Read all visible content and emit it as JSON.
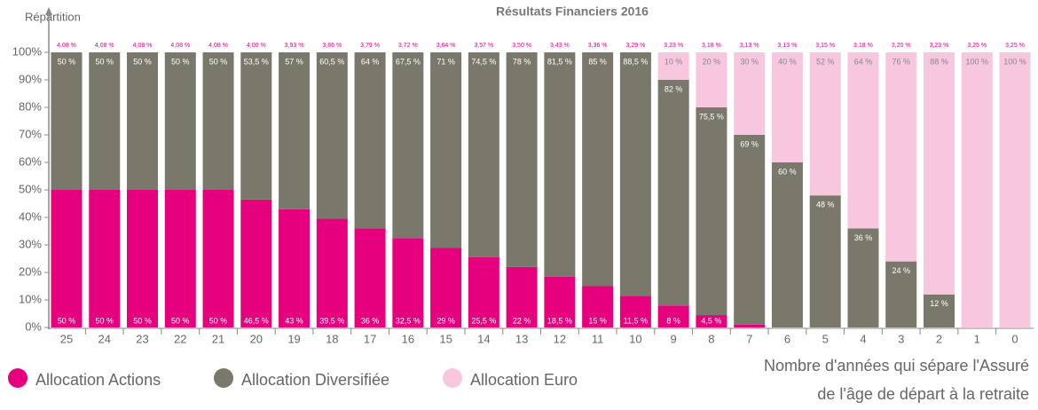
{
  "chart_data": {
    "type": "stacked_bar",
    "subtitle": "Résultats Financiers 2016",
    "y_label": "Répartition",
    "x_label": [
      "Nombre d'années qui sépare l'Assuré",
      "de l'âge de départ à la retraite"
    ],
    "categories": [
      "25",
      "24",
      "23",
      "22",
      "21",
      "20",
      "19",
      "18",
      "17",
      "16",
      "15",
      "14",
      "13",
      "12",
      "11",
      "10",
      "9",
      "8",
      "7",
      "6",
      "5",
      "4",
      "3",
      "2",
      "1",
      "0"
    ],
    "top_labels": [
      "4,08 %",
      "4,08 %",
      "4,08 %",
      "4,08 %",
      "4,08 %",
      "4,00 %",
      "3,93 %",
      "3,86 %",
      "3,79 %",
      "3,72 %",
      "3,64 %",
      "3,57 %",
      "3,50 %",
      "3,43 %",
      "3,36 %",
      "3,29 %",
      "3,23 %",
      "3,18 %",
      "3,13 %",
      "3,13 %",
      "3,15 %",
      "3,18 %",
      "3,20 %",
      "3,23 %",
      "3,25 %",
      "3,25 %"
    ],
    "series": [
      {
        "name": "Allocation Actions",
        "color": "#e6007e",
        "values": [
          50,
          50,
          50,
          50,
          50,
          46.5,
          43,
          39.5,
          36,
          32.5,
          29,
          25.5,
          22,
          18.5,
          15,
          11.5,
          8,
          4.5,
          1,
          0,
          0,
          0,
          0,
          0,
          0,
          0
        ],
        "value_labels": [
          "50 %",
          "50 %",
          "50 %",
          "50 %",
          "50 %",
          "46,5 %",
          "43 %",
          "39,5 %",
          "36 %",
          "32,5 %",
          "29 %",
          "25,5 %",
          "22 %",
          "18,5 %",
          "15 %",
          "11,5 %",
          "8 %",
          "4,5 %",
          "1 %",
          null,
          null,
          null,
          null,
          null,
          null,
          null
        ]
      },
      {
        "name": "Allocation Diversifiée",
        "color": "#7a776b",
        "values": [
          50,
          50,
          50,
          50,
          50,
          53.5,
          57,
          60.5,
          64,
          67.5,
          71,
          74.5,
          78,
          81.5,
          85,
          88.5,
          82,
          75.5,
          69,
          60,
          48,
          36,
          24,
          12,
          0,
          0
        ],
        "value_labels": [
          "50 %",
          "50 %",
          "50 %",
          "50 %",
          "50 %",
          "53,5 %",
          "57 %",
          "60,5 %",
          "64 %",
          "67,5 %",
          "71 %",
          "74,5 %",
          "78 %",
          "81,5 %",
          "85 %",
          "88,5 %",
          "82 %",
          "75,5 %",
          "69 %",
          "60 %",
          "48 %",
          "36 %",
          "24 %",
          "12 %",
          null,
          null
        ]
      },
      {
        "name": "Allocation Euro",
        "color": "#f7c6df",
        "values": [
          0,
          0,
          0,
          0,
          0,
          0,
          0,
          0,
          0,
          0,
          0,
          0,
          0,
          0,
          0,
          0,
          10,
          20,
          30,
          40,
          52,
          64,
          76,
          88,
          100,
          100
        ],
        "value_labels": [
          null,
          null,
          null,
          null,
          null,
          null,
          null,
          null,
          null,
          null,
          null,
          null,
          null,
          null,
          null,
          null,
          "10 %",
          "20 %",
          "30 %",
          "40 %",
          "52 %",
          "64 %",
          "76 %",
          "88 %",
          "100 %",
          "100 %"
        ]
      }
    ],
    "ylim": [
      0,
      100
    ],
    "yticks": [
      {
        "value": 0,
        "label": "0%"
      },
      {
        "value": 10,
        "label": "10%"
      },
      {
        "value": 20,
        "label": "20%"
      },
      {
        "value": 30,
        "label": "30%"
      },
      {
        "value": 40,
        "label": "40%"
      },
      {
        "value": 50,
        "label": "50%"
      },
      {
        "value": 60,
        "label": "60%"
      },
      {
        "value": 70,
        "label": "70%"
      },
      {
        "value": 80,
        "label": "80%"
      },
      {
        "value": 90,
        "label": "90%"
      },
      {
        "value": 100,
        "label": "100%"
      }
    ]
  }
}
